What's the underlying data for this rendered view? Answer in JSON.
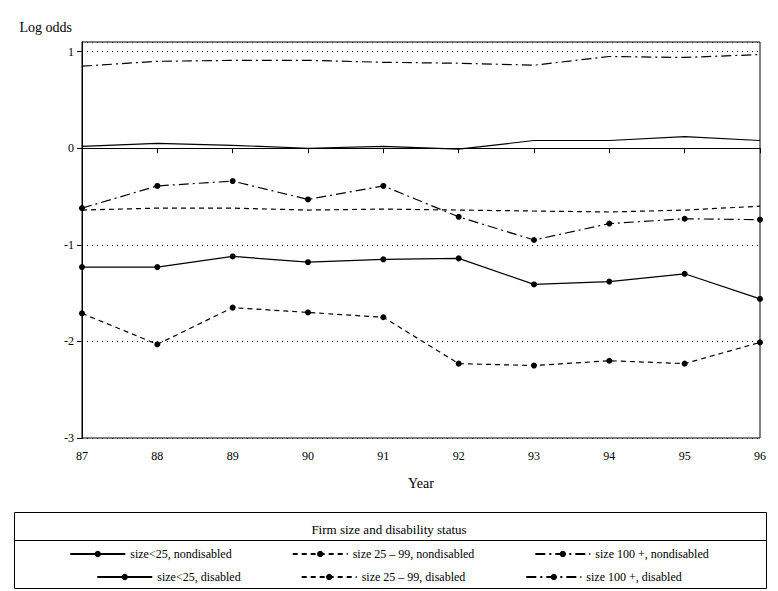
{
  "chart_data": {
    "type": "line",
    "x_label": "Year",
    "y_label": "Log odds",
    "legend_title": "Firm size and disability status",
    "legend": "bottom",
    "grid": true,
    "x": [
      87,
      88,
      89,
      90,
      91,
      92,
      93,
      94,
      95,
      96
    ],
    "xlim": [
      87,
      96
    ],
    "xticks": [
      87,
      88,
      89,
      90,
      91,
      92,
      93,
      94,
      95,
      96
    ],
    "ylim": [
      -3,
      1.1
    ],
    "yticks": [
      -3,
      -2,
      -1,
      0,
      1
    ],
    "series": [
      {
        "name": "size<25, nondisabled",
        "color": "#000000",
        "line_style": "solid",
        "marker": "none",
        "values": [
          0.02,
          0.05,
          0.03,
          0.0,
          0.02,
          -0.01,
          0.08,
          0.08,
          0.12,
          0.08
        ]
      },
      {
        "name": "size 25 – 99, nondisabled",
        "color": "#000000",
        "line_style": "dashed",
        "marker": "none",
        "values": [
          -0.64,
          -0.62,
          -0.62,
          -0.64,
          -0.63,
          -0.64,
          -0.65,
          -0.66,
          -0.64,
          -0.6
        ]
      },
      {
        "name": "size 100 +, nondisabled",
        "color": "#000000",
        "line_style": "dashdot",
        "marker": "none",
        "values": [
          0.85,
          0.9,
          0.91,
          0.91,
          0.89,
          0.88,
          0.86,
          0.95,
          0.94,
          0.97
        ]
      },
      {
        "name": "size<25, disabled",
        "color": "#000000",
        "line_style": "solid",
        "marker": "circle",
        "values": [
          -1.23,
          -1.23,
          -1.12,
          -1.18,
          -1.15,
          -1.14,
          -1.41,
          -1.38,
          -1.3,
          -1.56
        ]
      },
      {
        "name": "size 25 – 99, disabled",
        "color": "#000000",
        "line_style": "dashed",
        "marker": "circle",
        "values": [
          -1.71,
          -2.03,
          -1.65,
          -1.7,
          -1.75,
          -2.23,
          -2.25,
          -2.2,
          -2.23,
          -2.01
        ]
      },
      {
        "name": "size 100 +, disabled",
        "color": "#000000",
        "line_style": "dashdot",
        "marker": "circle",
        "values": [
          -0.62,
          -0.39,
          -0.34,
          -0.53,
          -0.39,
          -0.71,
          -0.95,
          -0.78,
          -0.73,
          -0.74
        ]
      }
    ]
  }
}
